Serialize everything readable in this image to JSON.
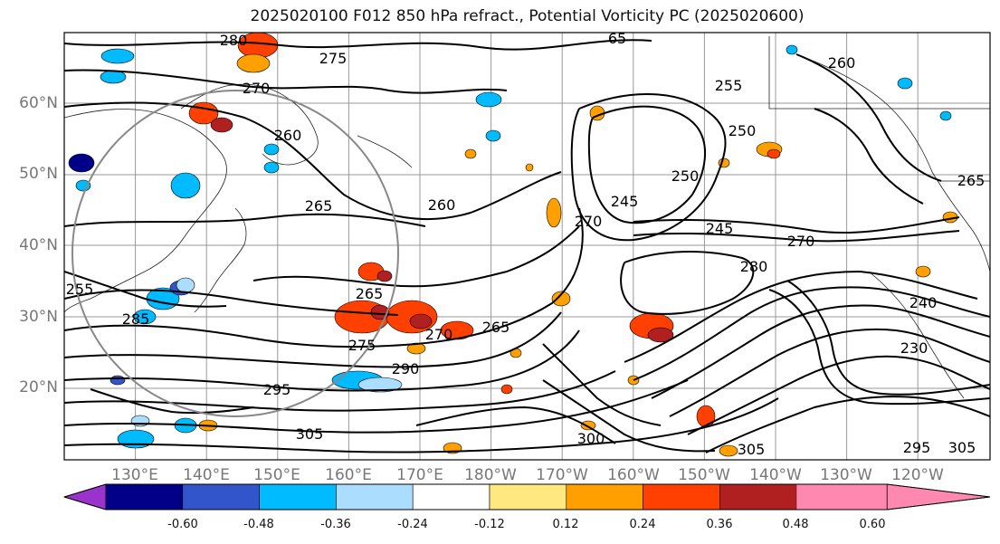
{
  "title": "2025020100 F012 850 hPa refract., Potential Vorticity PC (2025020600)",
  "lat_labels": [
    "60°N",
    "50°N",
    "40°N",
    "30°N",
    "20°N"
  ],
  "lon_labels": [
    "130°E",
    "140°E",
    "150°E",
    "160°E",
    "170°E",
    "180°W",
    "170°W",
    "160°W",
    "150°W",
    "140°W",
    "130°W",
    "120°W"
  ],
  "contour_labels": [
    "280",
    "275",
    "270",
    "260",
    "265",
    "260",
    "265",
    "255",
    "285",
    "275",
    "270",
    "265",
    "290",
    "295",
    "305",
    "300",
    "305",
    "295",
    "305",
    "250",
    "245",
    "270",
    "280",
    "255",
    "250",
    "245",
    "270",
    "265",
    "260",
    "230",
    "240",
    "65"
  ],
  "colorbar": {
    "ticks": [
      "-0.60",
      "-0.48",
      "-0.36",
      "-0.24",
      "-0.12",
      "0.12",
      "0.24",
      "0.36",
      "0.48",
      "0.60"
    ],
    "colors": [
      "#9933cc",
      "#000088",
      "#3355cc",
      "#00bbff",
      "#aaddff",
      "#ffffff",
      "#ffe880",
      "#ffa000",
      "#ff4000",
      "#b02020",
      "#ff88b0"
    ]
  }
}
